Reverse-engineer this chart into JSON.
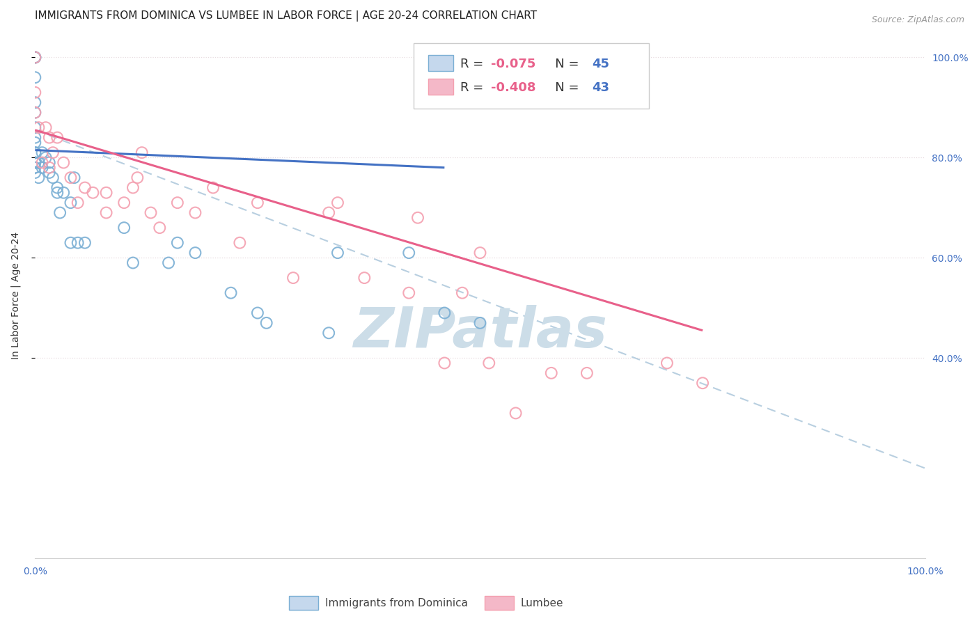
{
  "title": "IMMIGRANTS FROM DOMINICA VS LUMBEE IN LABOR FORCE | AGE 20-24 CORRELATION CHART",
  "source_text": "Source: ZipAtlas.com",
  "ylabel": "In Labor Force | Age 20-24",
  "xlim": [
    0.0,
    1.0
  ],
  "ylim": [
    0.0,
    1.05
  ],
  "dominica_color": "#7bafd4",
  "lumbee_color": "#f4a0b0",
  "dominica_line_color": "#4472c4",
  "lumbee_line_color": "#e8608a",
  "dashed_line_color": "#b8cfe0",
  "watermark_text": "ZIPatlas",
  "watermark_color": "#ccdde8",
  "background_color": "#ffffff",
  "grid_color": "#e8dce0",
  "right_tick_color": "#4472c4",
  "bottom_tick_color": "#4472c4",
  "title_fontsize": 11,
  "label_fontsize": 10,
  "tick_fontsize": 10,
  "dominica_x": [
    0.0,
    0.0,
    0.0,
    0.0,
    0.0,
    0.0,
    0.0,
    0.0,
    0.0,
    0.0,
    0.0,
    0.0,
    0.0,
    0.0,
    0.0,
    0.004,
    0.004,
    0.008,
    0.008,
    0.012,
    0.016,
    0.016,
    0.02,
    0.025,
    0.025,
    0.028,
    0.032,
    0.04,
    0.04,
    0.044,
    0.048,
    0.056,
    0.1,
    0.11,
    0.15,
    0.16,
    0.18,
    0.22,
    0.25,
    0.26,
    0.33,
    0.34,
    0.42,
    0.46,
    0.5
  ],
  "dominica_y": [
    1.0,
    1.0,
    1.0,
    0.96,
    0.91,
    0.89,
    0.86,
    0.84,
    0.83,
    0.81,
    0.81,
    0.79,
    0.79,
    0.78,
    0.77,
    0.79,
    0.76,
    0.81,
    0.78,
    0.8,
    0.79,
    0.77,
    0.76,
    0.74,
    0.73,
    0.69,
    0.73,
    0.71,
    0.63,
    0.76,
    0.63,
    0.63,
    0.66,
    0.59,
    0.59,
    0.63,
    0.61,
    0.53,
    0.49,
    0.47,
    0.45,
    0.61,
    0.61,
    0.49,
    0.47
  ],
  "lumbee_x": [
    0.0,
    0.0,
    0.0,
    0.004,
    0.008,
    0.012,
    0.016,
    0.016,
    0.02,
    0.025,
    0.032,
    0.04,
    0.048,
    0.056,
    0.065,
    0.08,
    0.08,
    0.1,
    0.11,
    0.115,
    0.12,
    0.13,
    0.14,
    0.16,
    0.18,
    0.2,
    0.23,
    0.25,
    0.29,
    0.33,
    0.34,
    0.37,
    0.42,
    0.43,
    0.46,
    0.48,
    0.5,
    0.51,
    0.54,
    0.58,
    0.62,
    0.71,
    0.75
  ],
  "lumbee_y": [
    1.0,
    0.93,
    0.89,
    0.86,
    0.79,
    0.86,
    0.84,
    0.78,
    0.81,
    0.84,
    0.79,
    0.76,
    0.71,
    0.74,
    0.73,
    0.73,
    0.69,
    0.71,
    0.74,
    0.76,
    0.81,
    0.69,
    0.66,
    0.71,
    0.69,
    0.74,
    0.63,
    0.71,
    0.56,
    0.69,
    0.71,
    0.56,
    0.53,
    0.68,
    0.39,
    0.53,
    0.61,
    0.39,
    0.29,
    0.37,
    0.37,
    0.39,
    0.35
  ],
  "dominica_line_x": [
    0.0,
    0.46
  ],
  "dominica_line_y": [
    0.815,
    0.78
  ],
  "lumbee_line_x": [
    0.0,
    0.75
  ],
  "lumbee_line_y": [
    0.855,
    0.455
  ],
  "dashed_line_x": [
    0.0,
    1.0
  ],
  "dashed_line_y": [
    0.855,
    0.18
  ],
  "ytick_values": [
    0.4,
    0.6,
    0.8,
    1.0
  ],
  "ytick_labels": [
    "40.0%",
    "60.0%",
    "80.0%",
    "100.0%"
  ]
}
